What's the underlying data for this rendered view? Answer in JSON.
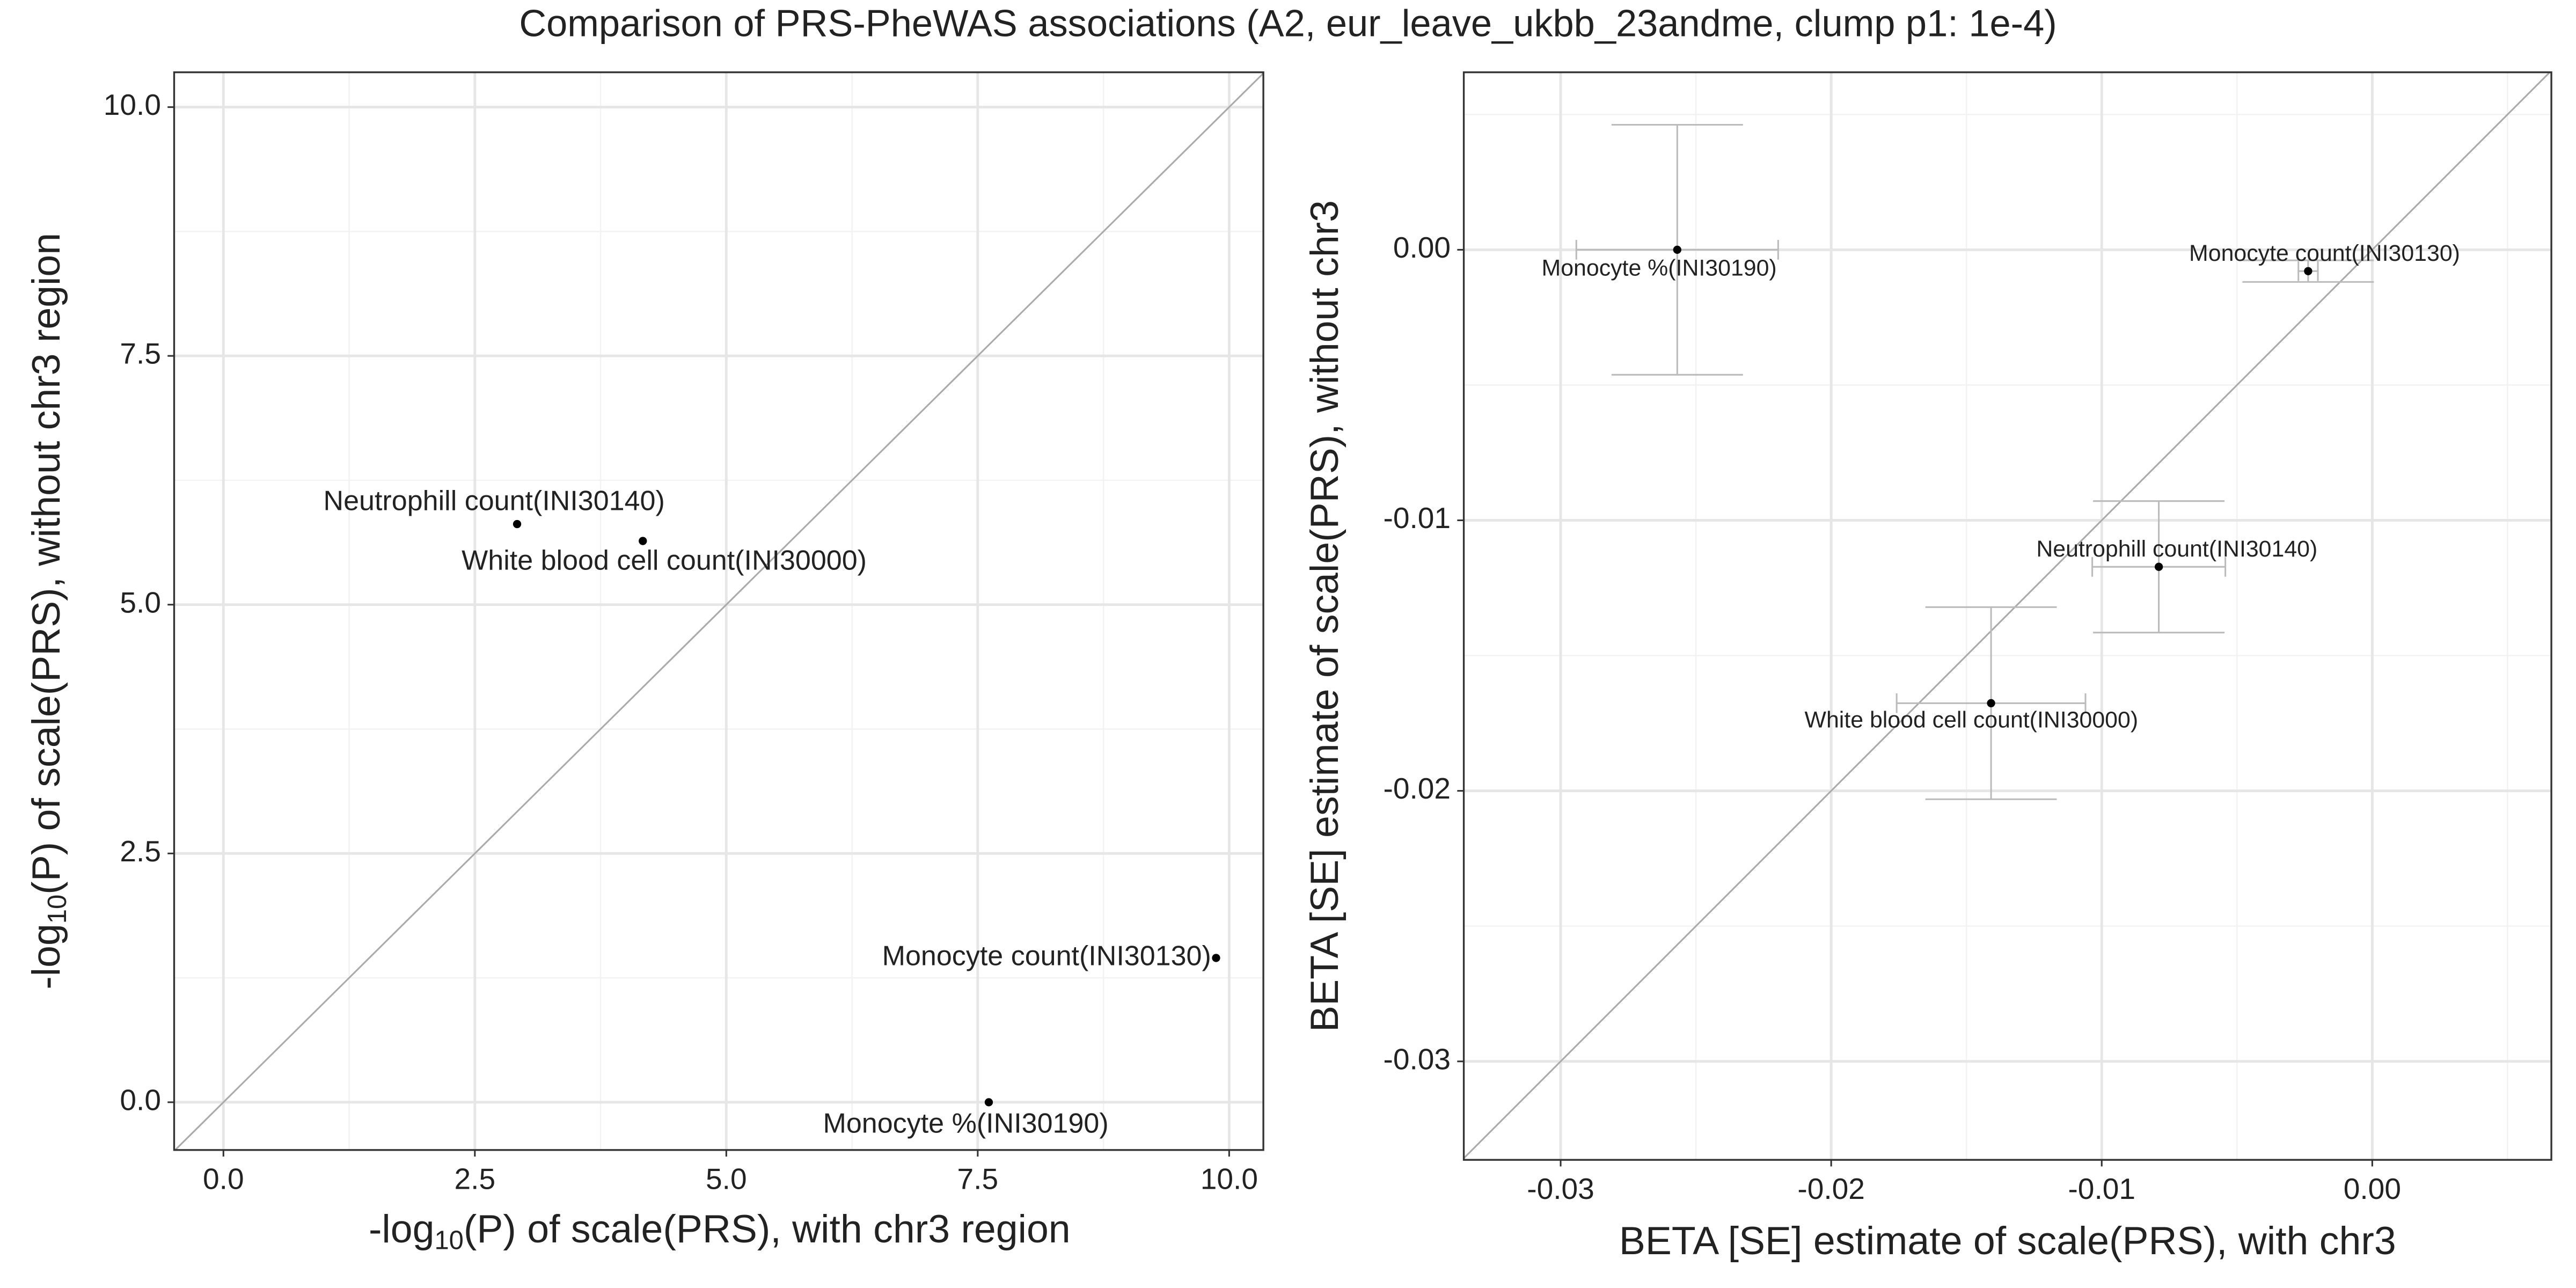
{
  "title": "Comparison of PRS-PheWAS associations (A2, eur_leave_ukbb_23andme, clump p1: 1e-4)",
  "chart_data": [
    {
      "type": "scatter",
      "x_label": {
        "prefix": "-log",
        "sub": "10",
        "suffix": "(P) of scale(PRS), with chr3 region"
      },
      "y_label": {
        "prefix": "-log",
        "sub": "10",
        "suffix": "(P) of scale(PRS), without chr3 region"
      },
      "labels": [
        "Neutrophill count(INI30140)",
        "White blood cell count(INI30000)",
        "Monocyte count(INI30130)",
        "Monocyte %(INI30190)"
      ],
      "x": [
        2.92,
        4.17,
        9.87,
        7.61
      ],
      "y": [
        5.81,
        5.64,
        1.45,
        0.0
      ],
      "xlim": [
        -0.49,
        10.34
      ],
      "ylim": [
        -0.48,
        10.35
      ],
      "xticks": [
        {
          "value": 0,
          "label": "0.0"
        },
        2.5,
        {
          "value": 5,
          "label": "5.0"
        },
        7.5,
        {
          "value": 10,
          "label": "10.0"
        }
      ],
      "yticks": [
        {
          "value": 0,
          "label": "0.0"
        },
        2.5,
        {
          "value": 5,
          "label": "5.0"
        },
        7.5,
        {
          "value": 10,
          "label": "10.0"
        }
      ],
      "grid": true,
      "diagonal": true,
      "point_color": "#000000",
      "label_color": "#56b4e9"
    },
    {
      "type": "scatter",
      "x_label": "BETA [SE] estimate of scale(PRS), with chr3",
      "y_label": "BETA [SE] estimate of scale(PRS), without chr3",
      "labels": [
        "Neutrophill count(INI30140)",
        "White blood cell count(INI30000)",
        "Monocyte count(INI30130)",
        "Monocyte %(INI30190)"
      ],
      "x": [
        -0.00789,
        -0.01409,
        -0.00237,
        -0.02569
      ],
      "y": [
        -0.01172,
        -0.01676,
        -0.00079,
        0.0
      ],
      "x_err": [
        0.00246,
        0.00349,
        0.00036,
        0.00373
      ],
      "y_err": [
        0.00243,
        0.00355,
        0.0004,
        0.00462
      ],
      "xlim": [
        -0.03358,
        0.00662
      ],
      "ylim": [
        -0.03364,
        0.00656
      ],
      "xticks": [
        -0.03,
        -0.02,
        -0.01,
        {
          "value": 0,
          "label": "0.00"
        }
      ],
      "yticks": [
        -0.03,
        -0.02,
        -0.01,
        {
          "value": 0,
          "label": "0.00"
        }
      ],
      "grid": true,
      "diagonal": true,
      "point_color": "#000000",
      "label_color": "#56b4e9",
      "error_color": "#bbbbbb"
    }
  ]
}
